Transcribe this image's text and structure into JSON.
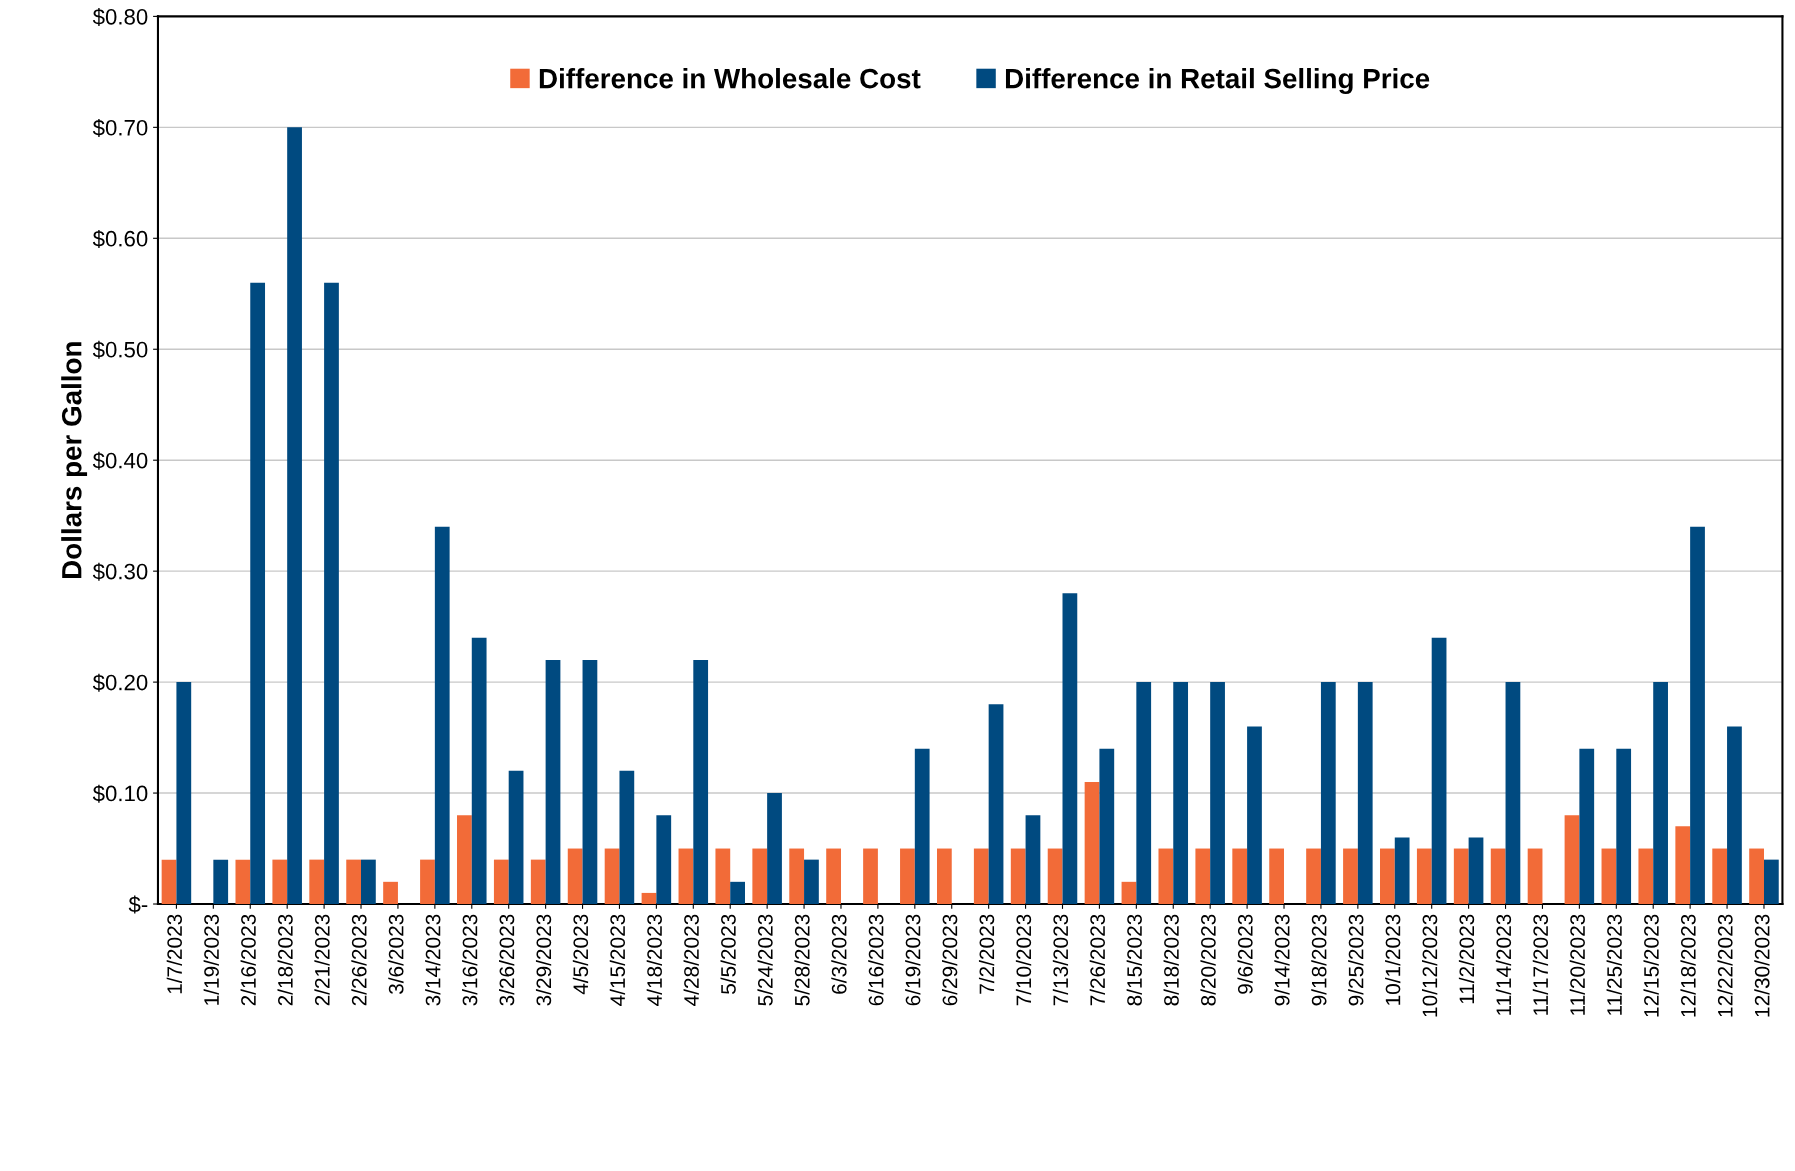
{
  "chart_data": {
    "type": "bar",
    "ylabel": "Dollars per Gallon",
    "categories": [
      "1/7/2023",
      "1/19/2023",
      "2/16/2023",
      "2/18/2023",
      "2/21/2023",
      "2/26/2023",
      "3/6/2023",
      "3/14/2023",
      "3/16/2023",
      "3/26/2023",
      "3/29/2023",
      "4/5/2023",
      "4/15/2023",
      "4/18/2023",
      "4/28/2023",
      "5/5/2023",
      "5/24/2023",
      "5/28/2023",
      "6/3/2023",
      "6/16/2023",
      "6/19/2023",
      "6/29/2023",
      "7/2/2023",
      "7/10/2023",
      "7/13/2023",
      "7/26/2023",
      "8/15/2023",
      "8/18/2023",
      "8/20/2023",
      "9/6/2023",
      "9/14/2023",
      "9/18/2023",
      "9/25/2023",
      "10/1/2023",
      "10/12/2023",
      "11/2/2023",
      "11/14/2023",
      "11/17/2023",
      "11/20/2023",
      "11/25/2023",
      "12/15/2023",
      "12/18/2023",
      "12/22/2023",
      "12/30/2023"
    ],
    "series": [
      {
        "name": "Difference in Wholesale Cost",
        "color": "#f26b38",
        "values": [
          0.04,
          0,
          0.04,
          0.04,
          0.04,
          0.04,
          0.02,
          0.04,
          0.08,
          0.04,
          0.04,
          0.05,
          0.05,
          0.01,
          0.05,
          0.05,
          0.05,
          0.05,
          0.05,
          0.05,
          0.05,
          0.05,
          0.05,
          0.05,
          0.05,
          0.11,
          0.02,
          0.05,
          0.05,
          0.05,
          0.05,
          0.05,
          0.05,
          0.05,
          0.05,
          0.05,
          0.05,
          0.05,
          0.08,
          0.05,
          0.05,
          0.07,
          0.05,
          0.05
        ]
      },
      {
        "name": "Difference in Retail Selling Price",
        "color": "#004a80",
        "values": [
          0.2,
          0.04,
          0.56,
          0.7,
          0.56,
          0.04,
          0,
          0.34,
          0.24,
          0.12,
          0.22,
          0.22,
          0.12,
          0.08,
          0.22,
          0.02,
          0.1,
          0.04,
          0,
          0,
          0.14,
          0,
          0.18,
          0.08,
          0.28,
          0.14,
          0.2,
          0.2,
          0.2,
          0.16,
          0,
          0.2,
          0.2,
          0.06,
          0.24,
          0.06,
          0.2,
          0,
          0.14,
          0.14,
          0.2,
          0.34,
          0.16,
          0.04
        ]
      }
    ],
    "ylim": [
      0,
      0.8
    ],
    "yticks": [
      {
        "value": 0,
        "label": "$-"
      },
      {
        "value": 0.1,
        "label": "$0.10"
      },
      {
        "value": 0.2,
        "label": "$0.20"
      },
      {
        "value": 0.3,
        "label": "$0.30"
      },
      {
        "value": 0.4,
        "label": "$0.40"
      },
      {
        "value": 0.5,
        "label": "$0.50"
      },
      {
        "value": 0.6,
        "label": "$0.60"
      },
      {
        "value": 0.7,
        "label": "$0.70"
      },
      {
        "value": 0.8,
        "label": "$0.80"
      }
    ],
    "grid": "y",
    "legend": "top"
  }
}
